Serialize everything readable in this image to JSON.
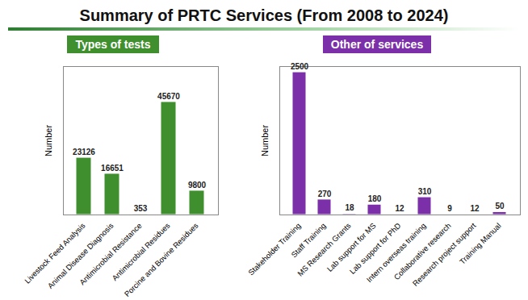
{
  "title": "Summary of PRTC Services (From 2008 to 2024)",
  "chart_data": [
    {
      "type": "bar",
      "title": "Types of tests",
      "y_label": "Number",
      "categories": [
        "Livestock Feed Analysis",
        "Animal Disease Diagnosis",
        "Antimicrobial Resistance",
        "Antimicrobial Residues",
        "Porcine and Bovine Residues"
      ],
      "values": [
        23126,
        16651,
        353,
        45670,
        9800
      ],
      "color": "#3f8f2f",
      "ylim": [
        0,
        60000
      ],
      "yticks": [],
      "data_labels": true,
      "tick_labels": "x"
    },
    {
      "type": "bar",
      "title": "Other of services",
      "y_label": "Number",
      "categories": [
        "Stakeholder Training",
        "Staff Training",
        "MS Research Grants",
        "Lab support for MS",
        "Lab support for PhD",
        "Intern overseas training",
        "Collaborative research",
        "Research project support",
        "Training Manual"
      ],
      "values": [
        2500,
        270,
        18,
        180,
        12,
        310,
        9,
        12,
        50
      ],
      "color": "#7b2fa8",
      "ylim": [
        0,
        2600
      ],
      "yticks": [],
      "data_labels": true,
      "tick_labels": "x"
    }
  ]
}
